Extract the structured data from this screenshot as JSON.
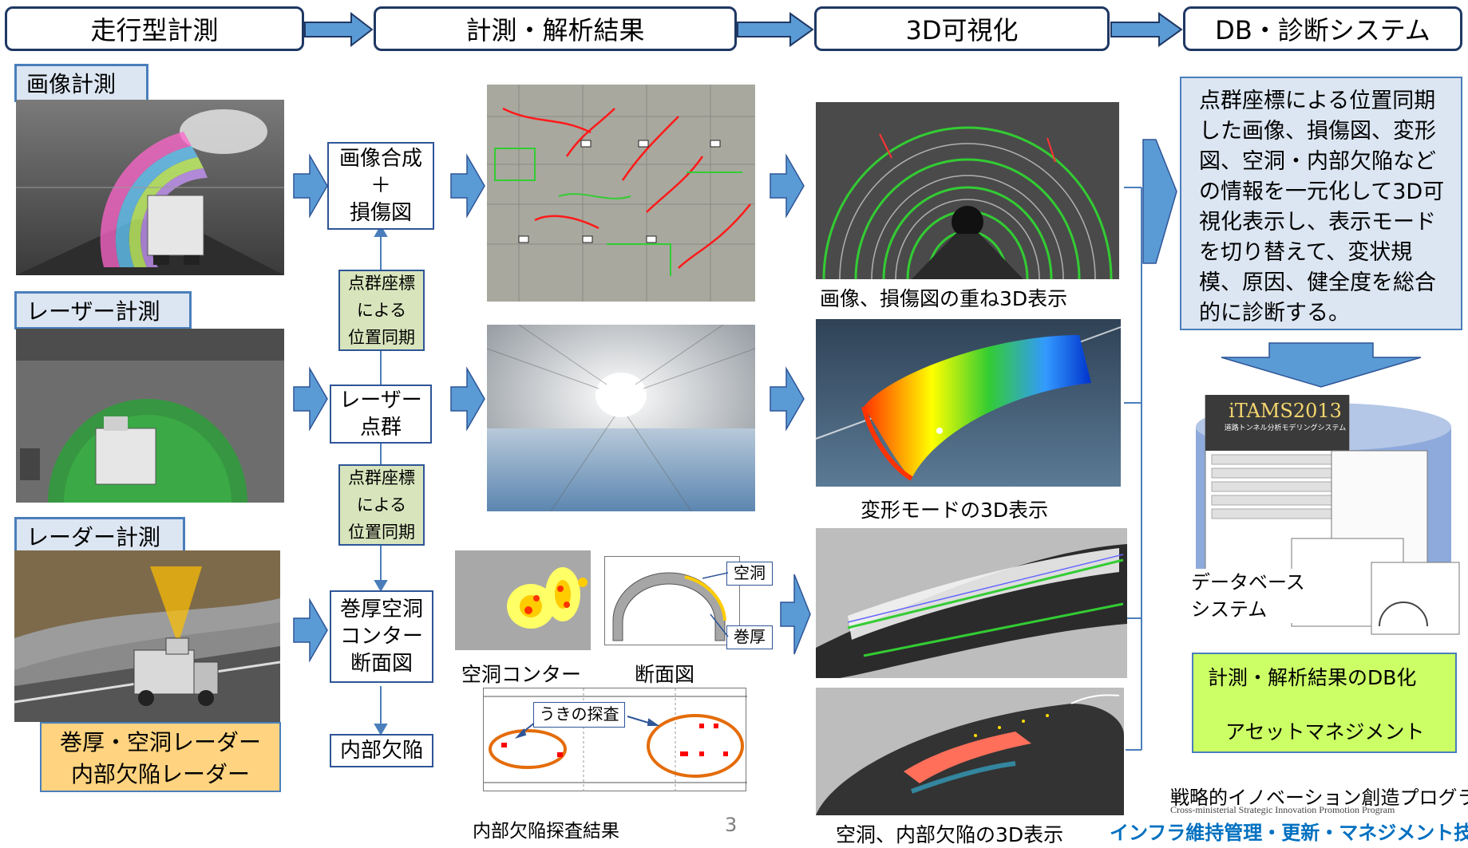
{
  "header": {
    "stage1": "走行型計測",
    "stage2": "計測・解析結果",
    "stage3": "3D可視化",
    "stage4": "DB・診断システム"
  },
  "measure": {
    "image": "画像計測",
    "laser": "レーザー計測",
    "radar": "レーダー計測",
    "radar_note_line1": "巻厚・空洞レーダー",
    "radar_note_line2": "内部欠陥レーダー"
  },
  "process": {
    "compose_line1": "画像合成",
    "compose_line2": "＋",
    "compose_line3": "損傷図",
    "sync1_line1": "点群座標",
    "sync1_line2": "による",
    "sync1_line3": "位置同期",
    "laser_line1": "レーザー",
    "laser_line2": "点群",
    "sync2_line1": "点群座標",
    "sync2_line2": "による",
    "sync2_line3": "位置同期",
    "contour_line1": "巻厚空洞",
    "contour_line2": "コンター",
    "contour_line3": "断面図",
    "defect": "内部欠陥"
  },
  "results": {
    "contour_caption": "空洞コンター",
    "section_caption": "断面図",
    "void_label": "空洞",
    "thickness_label": "巻厚",
    "float_search": "うきの探査",
    "defect_result": "内部欠陥探査結果",
    "page_number": "3"
  },
  "viz": {
    "overlay_caption": "画像、損傷図の重ね3D表示",
    "deform_caption": "変形モードの3D表示",
    "void_caption": "空洞、内部欠陥の3D表示"
  },
  "db": {
    "description": "点群座標による位置同期した画像、損傷図、変形図、空洞・内部欠陥などの情報を一元化して3D可視化表示し、表示モードを切り替えて、変状規模、原因、健全度を総合的に診断する。",
    "system_title": "iTAMS2013",
    "system_subtitle": "道路トンネル分析モデリングシステム",
    "database_line1": "データベース",
    "database_line2": "システム",
    "result_db": "計測・解析結果のDB化",
    "asset": "アセットマネジメント"
  },
  "footer": {
    "program_jp": "戦略的イノベーション創造プログラム",
    "program_en": "Cross-ministerial Strategic Innovation Promotion Program",
    "infra": "インフラ維持管理・更新・マネジメント技術"
  },
  "colors": {
    "header_border": "#1f3864",
    "arrow_fill": "#5b9bd5",
    "tag_fill": "#dce6f2",
    "sync_fill": "#d8e4bc",
    "radar_note_fill": "#ffd37f",
    "db_desc_fill": "#dce6f2",
    "db_result_fill": "#ccff66",
    "infra_text": "#0070c0",
    "ellipse": "#e46c0a"
  }
}
